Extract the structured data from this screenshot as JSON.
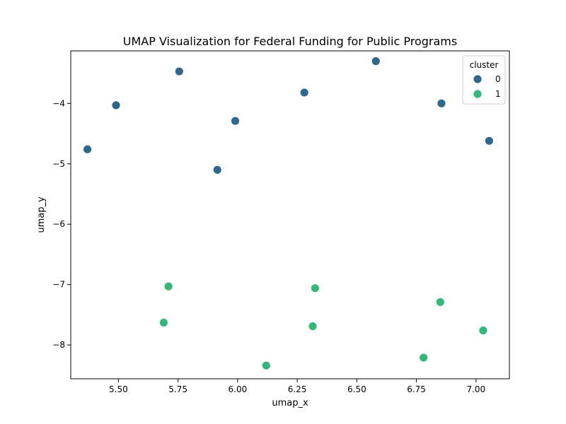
{
  "chart_data": {
    "type": "scatter",
    "title": "UMAP Visualization for Federal Funding for Public Programs",
    "xlabel": "umap_x",
    "ylabel": "umap_y",
    "xlim": [
      5.3,
      7.14
    ],
    "ylim": [
      -8.56,
      -3.13
    ],
    "xticks": [
      5.5,
      5.75,
      6.0,
      6.25,
      6.5,
      6.75,
      7.0
    ],
    "xtick_labels": [
      "5.50",
      "5.75",
      "6.00",
      "6.25",
      "6.50",
      "6.75",
      "7.00"
    ],
    "yticks": [
      -8,
      -7,
      -6,
      -5,
      -4
    ],
    "ytick_labels": [
      "−8",
      "−7",
      "−6",
      "−5",
      "−4"
    ],
    "grid": false,
    "legend": {
      "title": "cluster",
      "placement": "top-right"
    },
    "series": [
      {
        "name": "0",
        "color": "#30678d",
        "points": [
          {
            "x": 5.37,
            "y": -4.76
          },
          {
            "x": 5.49,
            "y": -4.03
          },
          {
            "x": 5.755,
            "y": -3.47
          },
          {
            "x": 5.915,
            "y": -5.1
          },
          {
            "x": 5.99,
            "y": -4.29
          },
          {
            "x": 6.28,
            "y": -3.82
          },
          {
            "x": 6.58,
            "y": -3.3
          },
          {
            "x": 6.855,
            "y": -4.0
          },
          {
            "x": 7.055,
            "y": -4.62
          }
        ]
      },
      {
        "name": "1",
        "color": "#35b779",
        "points": [
          {
            "x": 5.69,
            "y": -7.63
          },
          {
            "x": 5.71,
            "y": -7.03
          },
          {
            "x": 6.12,
            "y": -8.34
          },
          {
            "x": 6.315,
            "y": -7.69
          },
          {
            "x": 6.325,
            "y": -7.06
          },
          {
            "x": 6.78,
            "y": -8.21
          },
          {
            "x": 6.85,
            "y": -7.29
          },
          {
            "x": 7.03,
            "y": -7.76
          }
        ]
      }
    ]
  }
}
